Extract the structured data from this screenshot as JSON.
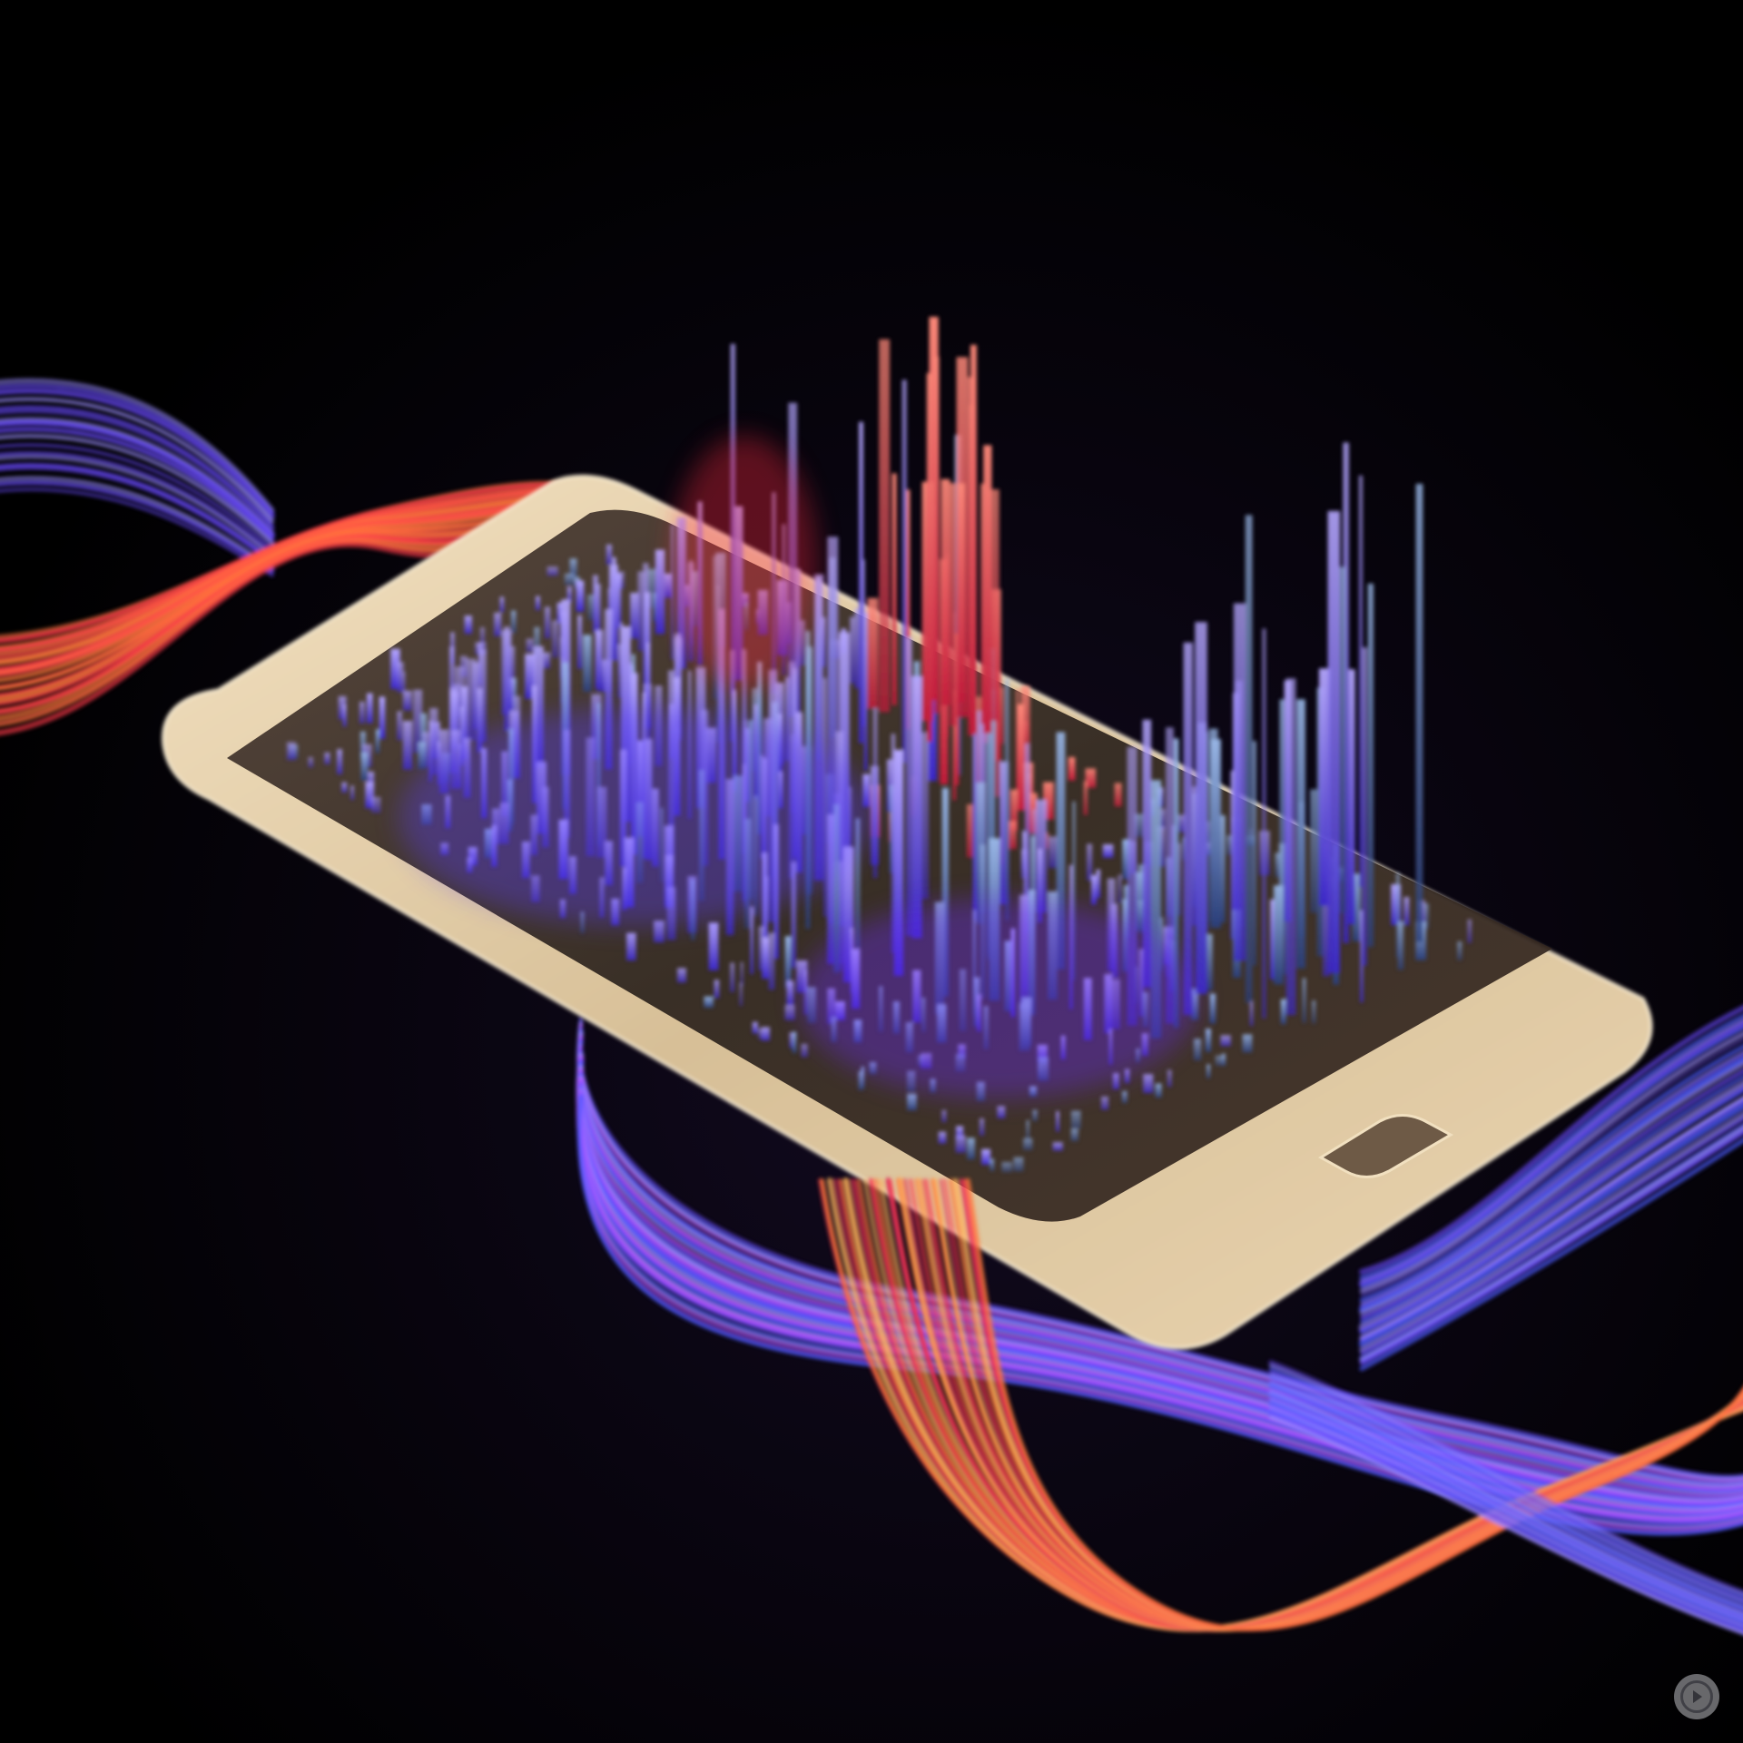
{
  "scene": {
    "subject": "smartphone",
    "background_color": "#000000",
    "phone_frame_color": "#d9c4a0",
    "screen_color": "#2b221c",
    "colors": {
      "violet": "#6a4cff",
      "blue": "#4b5cff",
      "lavender": "#9a8cff",
      "steel_blue": "#5c7fb8",
      "red": "#ff3b4a",
      "orange": "#ff7a3c",
      "magenta": "#c24bff"
    }
  },
  "badge": {
    "icon": "play-icon"
  }
}
